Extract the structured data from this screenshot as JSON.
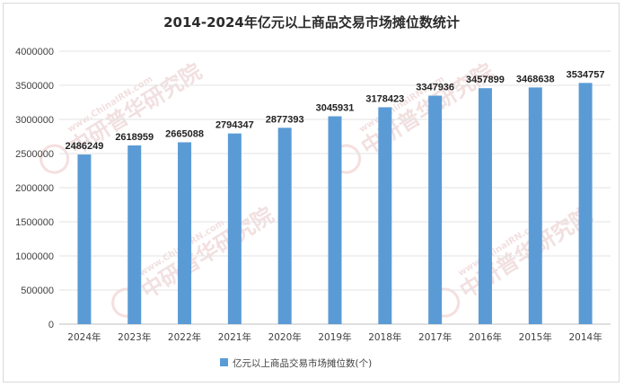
{
  "chart_data": {
    "type": "bar",
    "title": "2014-2024年亿元以上商品交易市场摊位数统计",
    "xlabel": "",
    "ylabel": "",
    "categories": [
      "2024年",
      "2023年",
      "2022年",
      "2021年",
      "2020年",
      "2019年",
      "2018年",
      "2017年",
      "2016年",
      "2015年",
      "2014年"
    ],
    "series": [
      {
        "name": "亿元以上商品交易市场摊位数(个)",
        "values": [
          2486249,
          2618959,
          2665088,
          2794347,
          2877393,
          3045931,
          3178423,
          3347936,
          3457899,
          3468638,
          3534757
        ],
        "color": "#5b9bd5"
      }
    ],
    "ylim": [
      0,
      4000000
    ],
    "yticks": [
      "0",
      "500000",
      "1000000",
      "1500000",
      "2000000",
      "2500000",
      "3000000",
      "3500000",
      "4000000"
    ],
    "grid": true,
    "legend_position": "bottom"
  },
  "watermark": {
    "text_cn": "中研普华研究院",
    "text_en": "www.ChinaIRN.com",
    "logo": "CIRN"
  }
}
